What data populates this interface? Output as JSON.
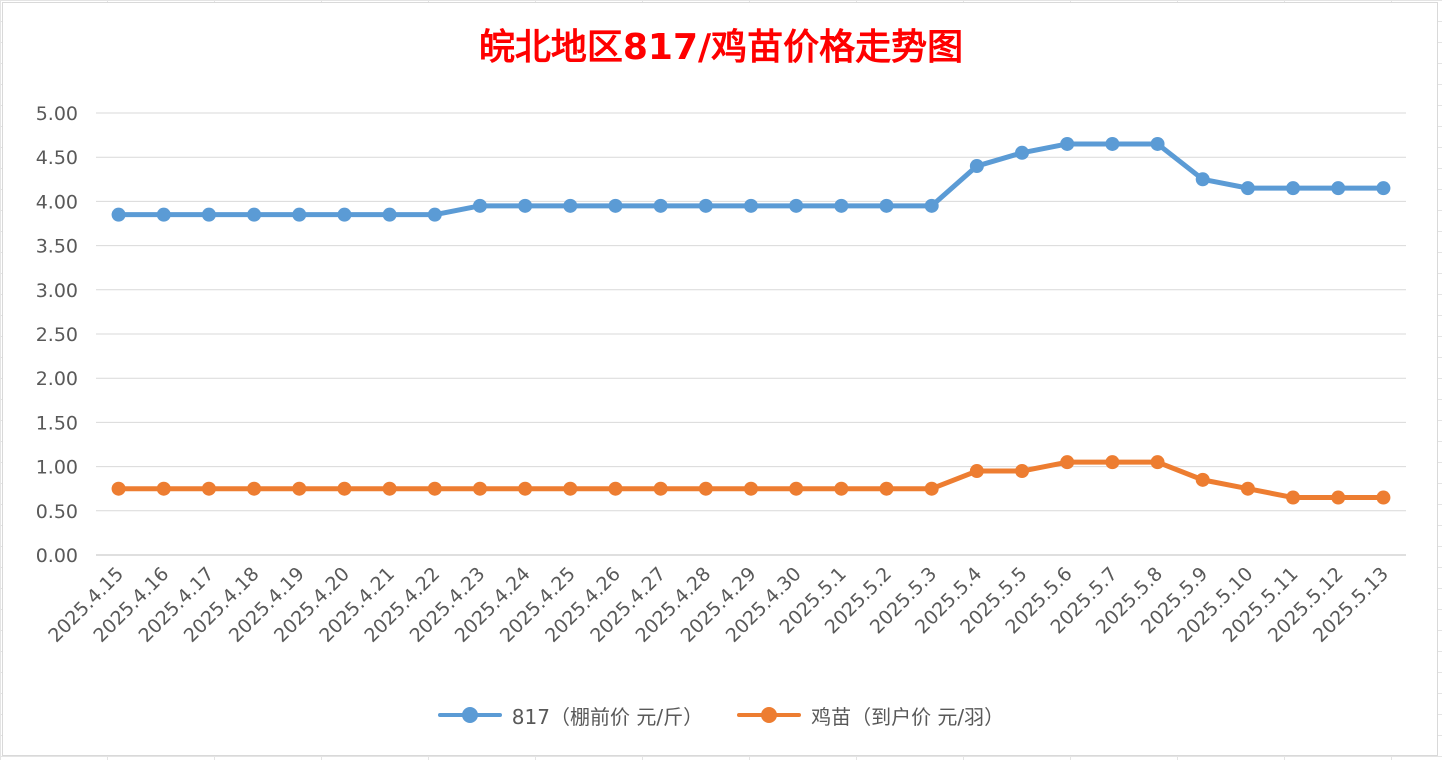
{
  "chart_data": {
    "type": "line",
    "title": "皖北地区817/鸡苗价格走势图",
    "title_color": "#ff0000",
    "xlabel": "",
    "ylabel": "",
    "ylim": [
      0,
      5
    ],
    "yticks": [
      "0.00",
      "0.50",
      "1.00",
      "1.50",
      "2.00",
      "2.50",
      "3.00",
      "3.50",
      "4.00",
      "4.50",
      "5.00"
    ],
    "grid": true,
    "legend_position": "bottom",
    "categories": [
      "2025.4.15",
      "2025.4.16",
      "2025.4.17",
      "2025.4.18",
      "2025.4.19",
      "2025.4.20",
      "2025.4.21",
      "2025.4.22",
      "2025.4.23",
      "2025.4.24",
      "2025.4.25",
      "2025.4.26",
      "2025.4.27",
      "2025.4.28",
      "2025.4.29",
      "2025.4.30",
      "2025.5.1",
      "2025.5.2",
      "2025.5.3",
      "2025.5.4",
      "2025.5.5",
      "2025.5.6",
      "2025.5.7",
      "2025.5.8",
      "2025.5.9",
      "2025.5.10",
      "2025.5.11",
      "2025.5.12",
      "2025.5.13"
    ],
    "series": [
      {
        "name": "817（棚前价 元/斤）",
        "color": "#5b9bd5",
        "values": [
          3.85,
          3.85,
          3.85,
          3.85,
          3.85,
          3.85,
          3.85,
          3.85,
          3.95,
          3.95,
          3.95,
          3.95,
          3.95,
          3.95,
          3.95,
          3.95,
          3.95,
          3.95,
          3.95,
          4.4,
          4.55,
          4.65,
          4.65,
          4.65,
          4.25,
          4.15,
          4.15,
          4.15,
          4.15
        ]
      },
      {
        "name": "鸡苗（到户价 元/羽）",
        "color": "#ed7d31",
        "values": [
          0.75,
          0.75,
          0.75,
          0.75,
          0.75,
          0.75,
          0.75,
          0.75,
          0.75,
          0.75,
          0.75,
          0.75,
          0.75,
          0.75,
          0.75,
          0.75,
          0.75,
          0.75,
          0.75,
          0.95,
          0.95,
          1.05,
          1.05,
          1.05,
          0.85,
          0.75,
          0.65,
          0.65,
          0.65
        ]
      }
    ]
  }
}
